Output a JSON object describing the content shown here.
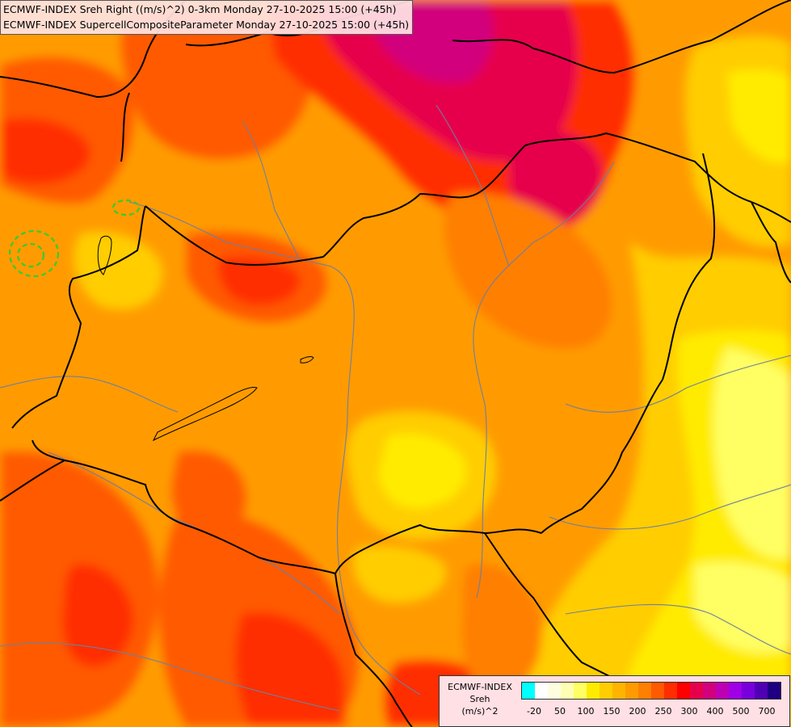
{
  "title": {
    "line1": "ECMWF-INDEX Sreh Right ((m/s)^2) 0-3km Monday 27-10-2025 15:00 (+45h)",
    "line2": "ECMWF-INDEX SupercellCompositeParameter Monday 27-10-2025 15:00 (+45h)"
  },
  "legend": {
    "line1": "ECMWF-INDEX",
    "line2": "Sreh",
    "line3": "(m/s)^2",
    "colors": [
      "#00ffff",
      "#ffffff",
      "#fffde0",
      "#ffffb4",
      "#ffff64",
      "#ffeb00",
      "#ffcd00",
      "#ffb400",
      "#ff9b00",
      "#ff7f00",
      "#ff5a00",
      "#ff2d00",
      "#ff0000",
      "#e6004b",
      "#d2007d",
      "#be00b4",
      "#a000e6",
      "#7800dc",
      "#5000b4",
      "#1e0082"
    ],
    "ticks": [
      {
        "label": "-20",
        "pos": 1
      },
      {
        "label": "50",
        "pos": 3
      },
      {
        "label": "100",
        "pos": 5
      },
      {
        "label": "150",
        "pos": 7
      },
      {
        "label": "200",
        "pos": 9
      },
      {
        "label": "250",
        "pos": 11
      },
      {
        "label": "300",
        "pos": 13
      },
      {
        "label": "400",
        "pos": 15
      },
      {
        "label": "500",
        "pos": 17
      },
      {
        "label": "700",
        "pos": 19
      }
    ]
  },
  "map": {
    "field_base_color": "#ff9b00",
    "supercell_contour_color": "#33cc33",
    "border_color": "#000000",
    "river_color": "#6f7f9f"
  }
}
